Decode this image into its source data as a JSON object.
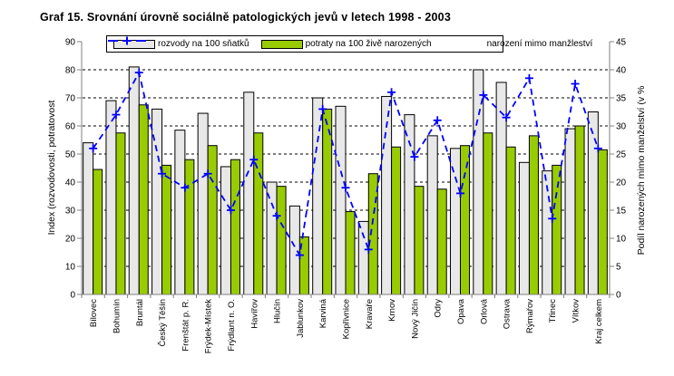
{
  "title": "Graf 15. Srovnání úrovně sociálně patologických jevů v letech 1998 - 2003",
  "colors": {
    "bar_divorce": "#E8E8E8",
    "bar_abortion": "#99CC00",
    "line_births": "#0000FF",
    "bar_border": "#000000",
    "grid": "#000000",
    "axis": "#808080",
    "background": "#FFFFFF"
  },
  "chart_data": {
    "type": "bar",
    "subtype": "grouped bars with overlaid dashed line (secondary axis)",
    "title": "Graf 15. Srovnání úrovně sociálně patologických jevů v letech 1998 - 2003",
    "legend_position": "top",
    "grid": {
      "horizontal": true,
      "style": "dashed",
      "step_left_axis": 10
    },
    "categories": [
      "Bílovec",
      "Bohumín",
      "Bruntál",
      "Český Těšín",
      "Frenštát p. R.",
      "Frýdek-Místek",
      "Frýdlant n. O.",
      "Havířov",
      "Hlučín",
      "Jablunkov",
      "Karviná",
      "Kopřivnice",
      "Kravaře",
      "Krnov",
      "Nový Jičín",
      "Odry",
      "Opava",
      "Orlová",
      "Ostrava",
      "Rýmařov",
      "Třinec",
      "Vítkov",
      "Kraj celkem"
    ],
    "series": [
      {
        "name": "rozvody na 100 sňatků",
        "type": "bar",
        "axis": "left",
        "color": "#E8E8E8",
        "values": [
          54,
          69,
          81,
          66,
          58.5,
          64.5,
          45.5,
          72,
          40,
          31.5,
          70,
          67,
          26,
          70.5,
          64,
          56.5,
          52,
          80,
          75.5,
          47,
          44,
          59,
          65
        ]
      },
      {
        "name": "potraty na 100 živě narozených",
        "type": "bar",
        "axis": "left",
        "color": "#99CC00",
        "values": [
          44.5,
          57.5,
          67.5,
          46,
          48,
          53,
          48,
          57.5,
          38.5,
          20.5,
          66,
          29.5,
          43,
          52.5,
          38.5,
          37.5,
          53,
          57.5,
          52.5,
          56.5,
          46,
          60,
          51.5
        ]
      },
      {
        "name": "narození mimo manžleství",
        "type": "line",
        "axis": "right",
        "color": "#0000FF",
        "marker": "plus",
        "dashed": true,
        "values": [
          26,
          32,
          39.5,
          21.5,
          19,
          21.5,
          15,
          24,
          14,
          7,
          33,
          19,
          8,
          36,
          24.5,
          31,
          18,
          35.5,
          31.5,
          38.5,
          13.5,
          37.5,
          26
        ]
      }
    ],
    "left_axis": {
      "title": "Index (rozvodovosti, potratovost",
      "min": 0,
      "max": 90,
      "step": 10,
      "ticks": [
        0,
        10,
        20,
        30,
        40,
        50,
        60,
        70,
        80,
        90
      ]
    },
    "right_axis": {
      "title": "Podíl narozených mimo manželství (v %",
      "min": 0,
      "max": 45,
      "step": 5,
      "ticks": [
        0,
        5,
        10,
        15,
        20,
        25,
        30,
        35,
        40,
        45
      ]
    }
  }
}
